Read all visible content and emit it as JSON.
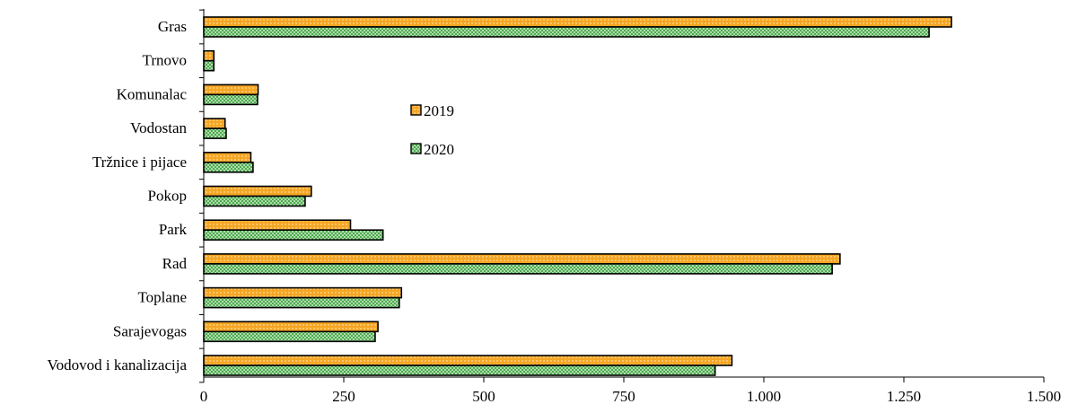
{
  "chart_data": {
    "type": "bar",
    "orientation": "horizontal",
    "categories": [
      "Gras",
      "Trnovo",
      "Komunalac",
      "Vodostan",
      "Tržnice i pijace",
      "Pokop",
      "Park",
      "Rad",
      "Toplane",
      "Sarajevogas",
      "Vodovod i kanalizacija"
    ],
    "series": [
      {
        "name": "2019",
        "color": "#F5A623",
        "pattern": "dots",
        "values": [
          1335,
          18,
          97,
          38,
          84,
          192,
          262,
          1136,
          353,
          311,
          943
        ]
      },
      {
        "name": "2020",
        "color": "#3AA03A",
        "pattern": "crosshatch",
        "values": [
          1295,
          18,
          96,
          40,
          88,
          181,
          320,
          1122,
          349,
          306,
          913
        ]
      }
    ],
    "xlim": [
      0,
      1500
    ],
    "xticks": [
      0,
      250,
      500,
      750,
      1000,
      1250,
      1500
    ],
    "xtick_labels": [
      "0",
      "250",
      "500",
      "750",
      "1.000",
      "1.250",
      "1.500"
    ],
    "title": "",
    "xlabel": "",
    "ylabel": "",
    "grid": false,
    "legend": "upper-middle"
  }
}
